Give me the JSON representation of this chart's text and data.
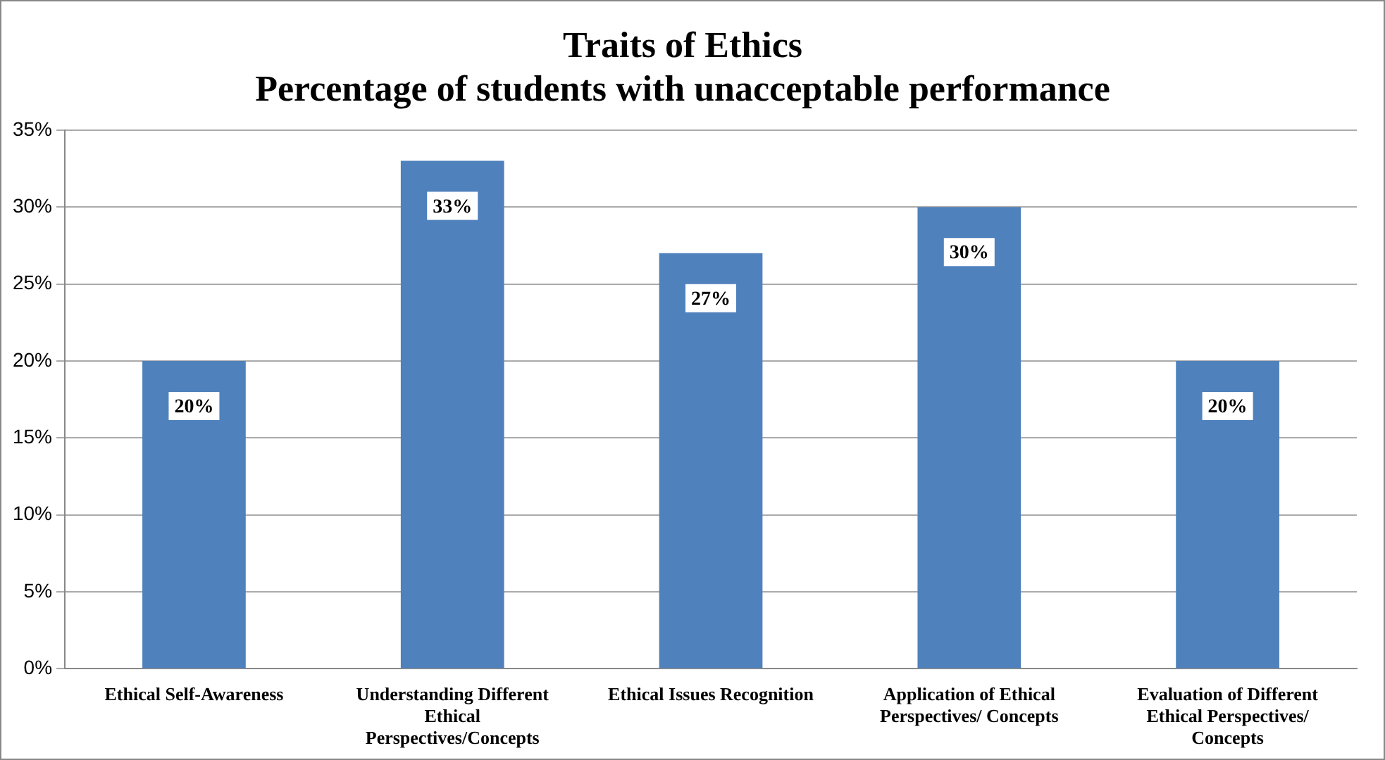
{
  "chart_data": {
    "type": "bar",
    "title": "Traits of Ethics",
    "subtitle": "Percentage of students with unacceptable performance",
    "categories": [
      "Ethical Self-Awareness",
      "Understanding Different Ethical Perspectives/Concepts",
      "Ethical Issues Recognition",
      "Application of Ethical Perspectives/ Concepts",
      "Evaluation of Different Ethical Perspectives/ Concepts"
    ],
    "values": [
      20,
      33,
      27,
      30,
      20
    ],
    "value_labels": [
      "20%",
      "33%",
      "27%",
      "30%",
      "20%"
    ],
    "color": "#4f81bd",
    "ylim": [
      0,
      35
    ],
    "yticks": [
      {
        "value": 0,
        "label": "0%"
      },
      {
        "value": 5,
        "label": "5%"
      },
      {
        "value": 10,
        "label": "10%"
      },
      {
        "value": 15,
        "label": "15%"
      },
      {
        "value": 20,
        "label": "20%"
      },
      {
        "value": 25,
        "label": "25%"
      },
      {
        "value": 30,
        "label": "30%"
      },
      {
        "value": 35,
        "label": "35%"
      }
    ],
    "grid": "y",
    "legend": false
  }
}
